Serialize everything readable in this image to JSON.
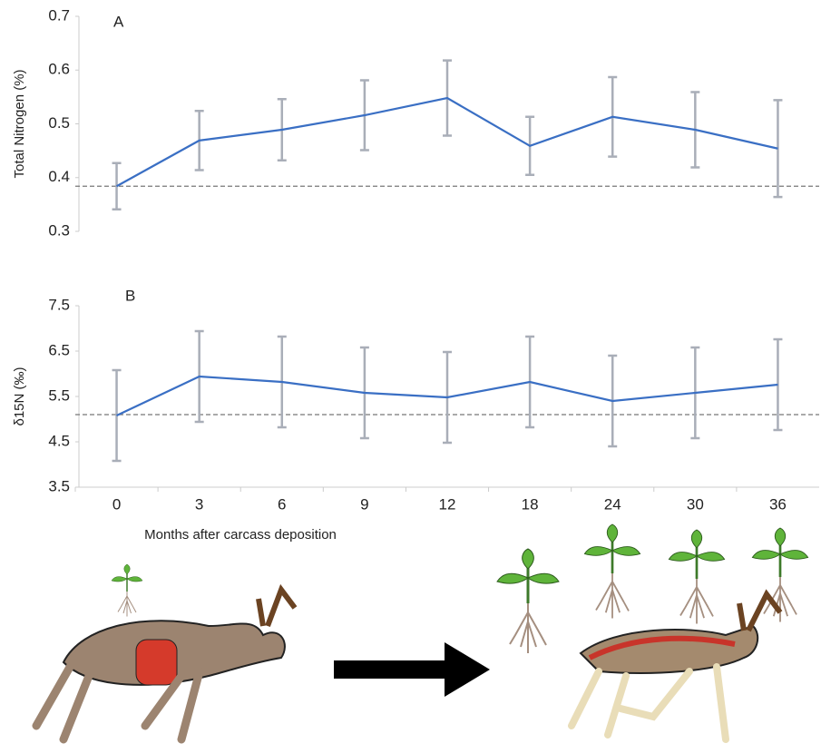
{
  "chart_data": [
    {
      "type": "line",
      "panel_label": "A",
      "y_label": "Total Nitrogen (%)",
      "series": [
        {
          "color": "#3a6fc4",
          "values": [
            0.384,
            0.469,
            0.489,
            0.516,
            0.548,
            0.459,
            0.513,
            0.489,
            0.454
          ],
          "errors": [
            0.043,
            0.055,
            0.057,
            0.065,
            0.07,
            0.054,
            0.074,
            0.07,
            0.09
          ]
        }
      ],
      "error_color": "#a9aeb8",
      "reference_line": 0.384,
      "ylim": [
        0.3,
        0.7
      ],
      "yticks": [
        0.3,
        0.4,
        0.5,
        0.6,
        0.7
      ]
    },
    {
      "type": "line",
      "panel_label": "B",
      "y_label": "δ15N (‰)",
      "categories": [
        "0",
        "3",
        "6",
        "9",
        "12",
        "18",
        "24",
        "30",
        "36"
      ],
      "x_label": "Months after  carcass deposition",
      "series": [
        {
          "color": "#3a6fc4",
          "values": [
            5.08,
            5.94,
            5.82,
            5.58,
            5.48,
            5.82,
            5.4,
            5.58,
            5.76
          ],
          "errors": [
            1.0,
            1.0,
            1.0,
            1.0,
            1.0,
            1.0,
            1.0,
            1.0,
            1.0
          ]
        }
      ],
      "error_color": "#a9aeb8",
      "reference_line": 5.1,
      "ylim": [
        3.5,
        7.5
      ],
      "yticks": [
        3.5,
        4.5,
        5.5,
        6.5,
        7.5
      ]
    }
  ]
}
